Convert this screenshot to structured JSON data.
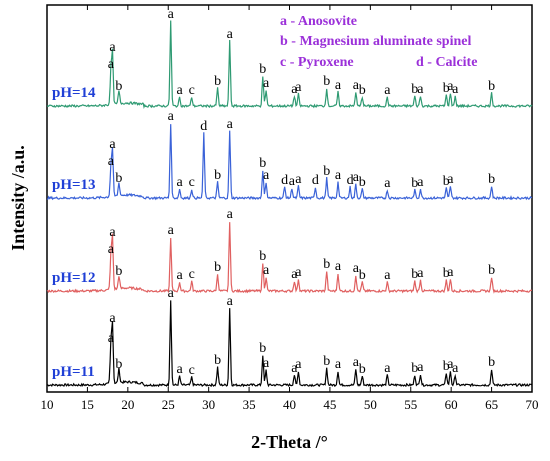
{
  "chart_data": {
    "type": "line",
    "xlabel": "2-Theta /°",
    "ylabel": "Intensity /a.u.",
    "xlim": [
      10,
      70
    ],
    "xticks": [
      10,
      15,
      20,
      25,
      30,
      35,
      40,
      45,
      50,
      55,
      60,
      65,
      70
    ],
    "legend": [
      "a - Anosovite",
      "b - Magnesium aluminate spinel",
      "c - Pyroxene",
      "d - Calcite"
    ],
    "series": [
      {
        "name": "pH=11",
        "color": "#000000",
        "peaks": [
          {
            "x": 17.9,
            "h": 40,
            "label": "a"
          },
          {
            "x": 18.1,
            "h": 60,
            "label": "a"
          },
          {
            "x": 18.9,
            "h": 14,
            "label": "b"
          },
          {
            "x": 25.3,
            "h": 85,
            "label": "a"
          },
          {
            "x": 26.4,
            "h": 9,
            "label": "a"
          },
          {
            "x": 27.9,
            "h": 8,
            "label": "c"
          },
          {
            "x": 31.1,
            "h": 18,
            "label": "b"
          },
          {
            "x": 32.6,
            "h": 77,
            "label": "a"
          },
          {
            "x": 36.7,
            "h": 30,
            "label": "b"
          },
          {
            "x": 37.1,
            "h": 15,
            "label": "a"
          },
          {
            "x": 40.6,
            "h": 10,
            "label": "a"
          },
          {
            "x": 41.1,
            "h": 14,
            "label": "a"
          },
          {
            "x": 44.6,
            "h": 17,
            "label": "b"
          },
          {
            "x": 46.0,
            "h": 14,
            "label": "a"
          },
          {
            "x": 48.2,
            "h": 16,
            "label": "a"
          },
          {
            "x": 49.0,
            "h": 9,
            "label": "b"
          },
          {
            "x": 52.1,
            "h": 10,
            "label": "a"
          },
          {
            "x": 55.5,
            "h": 10,
            "label": "b"
          },
          {
            "x": 56.2,
            "h": 11,
            "label": "a"
          },
          {
            "x": 59.4,
            "h": 12,
            "label": "b"
          },
          {
            "x": 59.9,
            "h": 14,
            "label": "a"
          },
          {
            "x": 60.5,
            "h": 10,
            "label": "a"
          },
          {
            "x": 65.0,
            "h": 16,
            "label": "b"
          }
        ]
      },
      {
        "name": "pH=12",
        "color": "#e06060",
        "peaks": [
          {
            "x": 17.9,
            "h": 35,
            "label": "a"
          },
          {
            "x": 18.1,
            "h": 52,
            "label": "a"
          },
          {
            "x": 18.9,
            "h": 13,
            "label": "b"
          },
          {
            "x": 25.3,
            "h": 54,
            "label": "a"
          },
          {
            "x": 26.4,
            "h": 9,
            "label": "a"
          },
          {
            "x": 27.9,
            "h": 10,
            "label": "c"
          },
          {
            "x": 31.1,
            "h": 17,
            "label": "b"
          },
          {
            "x": 32.6,
            "h": 70,
            "label": "a"
          },
          {
            "x": 36.7,
            "h": 28,
            "label": "b"
          },
          {
            "x": 37.1,
            "h": 14,
            "label": "a"
          },
          {
            "x": 40.6,
            "h": 10,
            "label": "a"
          },
          {
            "x": 41.1,
            "h": 12,
            "label": "a"
          },
          {
            "x": 44.6,
            "h": 20,
            "label": "b"
          },
          {
            "x": 46.0,
            "h": 18,
            "label": "a"
          },
          {
            "x": 48.2,
            "h": 16,
            "label": "a"
          },
          {
            "x": 49.0,
            "h": 9,
            "label": "b"
          },
          {
            "x": 52.1,
            "h": 9,
            "label": "a"
          },
          {
            "x": 55.5,
            "h": 10,
            "label": "b"
          },
          {
            "x": 56.2,
            "h": 11,
            "label": "a"
          },
          {
            "x": 59.4,
            "h": 11,
            "label": "b"
          },
          {
            "x": 59.9,
            "h": 12,
            "label": "a"
          },
          {
            "x": 65.0,
            "h": 14,
            "label": "b"
          }
        ]
      },
      {
        "name": "pH=13",
        "color": "#3a62d8",
        "peaks": [
          {
            "x": 17.9,
            "h": 30,
            "label": "a"
          },
          {
            "x": 18.1,
            "h": 47,
            "label": "a"
          },
          {
            "x": 18.9,
            "h": 13,
            "label": "b"
          },
          {
            "x": 25.3,
            "h": 75,
            "label": "a"
          },
          {
            "x": 26.4,
            "h": 9,
            "label": "a"
          },
          {
            "x": 27.9,
            "h": 9,
            "label": "c"
          },
          {
            "x": 29.4,
            "h": 65,
            "label": "d"
          },
          {
            "x": 31.1,
            "h": 16,
            "label": "b"
          },
          {
            "x": 32.6,
            "h": 67,
            "label": "a"
          },
          {
            "x": 36.7,
            "h": 28,
            "label": "b"
          },
          {
            "x": 37.1,
            "h": 16,
            "label": "a"
          },
          {
            "x": 39.4,
            "h": 11,
            "label": "d"
          },
          {
            "x": 40.3,
            "h": 10,
            "label": "a"
          },
          {
            "x": 41.1,
            "h": 12,
            "label": "a"
          },
          {
            "x": 43.2,
            "h": 11,
            "label": "d"
          },
          {
            "x": 44.6,
            "h": 20,
            "label": "b"
          },
          {
            "x": 46.0,
            "h": 16,
            "label": "a"
          },
          {
            "x": 47.5,
            "h": 11,
            "label": "d"
          },
          {
            "x": 48.2,
            "h": 14,
            "label": "a"
          },
          {
            "x": 49.0,
            "h": 9,
            "label": "b"
          },
          {
            "x": 52.1,
            "h": 8,
            "label": "a"
          },
          {
            "x": 55.5,
            "h": 8,
            "label": "b"
          },
          {
            "x": 56.2,
            "h": 9,
            "label": "a"
          },
          {
            "x": 59.4,
            "h": 10,
            "label": "b"
          },
          {
            "x": 59.9,
            "h": 12,
            "label": "a"
          },
          {
            "x": 65.0,
            "h": 12,
            "label": "b"
          }
        ]
      },
      {
        "name": "pH=14",
        "color": "#2e9a72",
        "peaks": [
          {
            "x": 17.9,
            "h": 35,
            "label": "a"
          },
          {
            "x": 18.1,
            "h": 52,
            "label": "a"
          },
          {
            "x": 18.9,
            "h": 13,
            "label": "b"
          },
          {
            "x": 25.3,
            "h": 85,
            "label": "a"
          },
          {
            "x": 26.4,
            "h": 9,
            "label": "a"
          },
          {
            "x": 27.9,
            "h": 9,
            "label": "c"
          },
          {
            "x": 31.1,
            "h": 18,
            "label": "b"
          },
          {
            "x": 32.6,
            "h": 65,
            "label": "a"
          },
          {
            "x": 36.7,
            "h": 30,
            "label": "b"
          },
          {
            "x": 37.1,
            "h": 16,
            "label": "a"
          },
          {
            "x": 40.6,
            "h": 10,
            "label": "a"
          },
          {
            "x": 41.1,
            "h": 12,
            "label": "a"
          },
          {
            "x": 44.6,
            "h": 18,
            "label": "b"
          },
          {
            "x": 46.0,
            "h": 14,
            "label": "a"
          },
          {
            "x": 48.2,
            "h": 14,
            "label": "a"
          },
          {
            "x": 49.0,
            "h": 9,
            "label": "b"
          },
          {
            "x": 52.1,
            "h": 9,
            "label": "a"
          },
          {
            "x": 55.5,
            "h": 10,
            "label": "b"
          },
          {
            "x": 56.2,
            "h": 10,
            "label": "a"
          },
          {
            "x": 59.4,
            "h": 11,
            "label": "b"
          },
          {
            "x": 59.9,
            "h": 13,
            "label": "a"
          },
          {
            "x": 60.5,
            "h": 10,
            "label": "a"
          },
          {
            "x": 65.0,
            "h": 13,
            "label": "b"
          }
        ]
      }
    ]
  }
}
